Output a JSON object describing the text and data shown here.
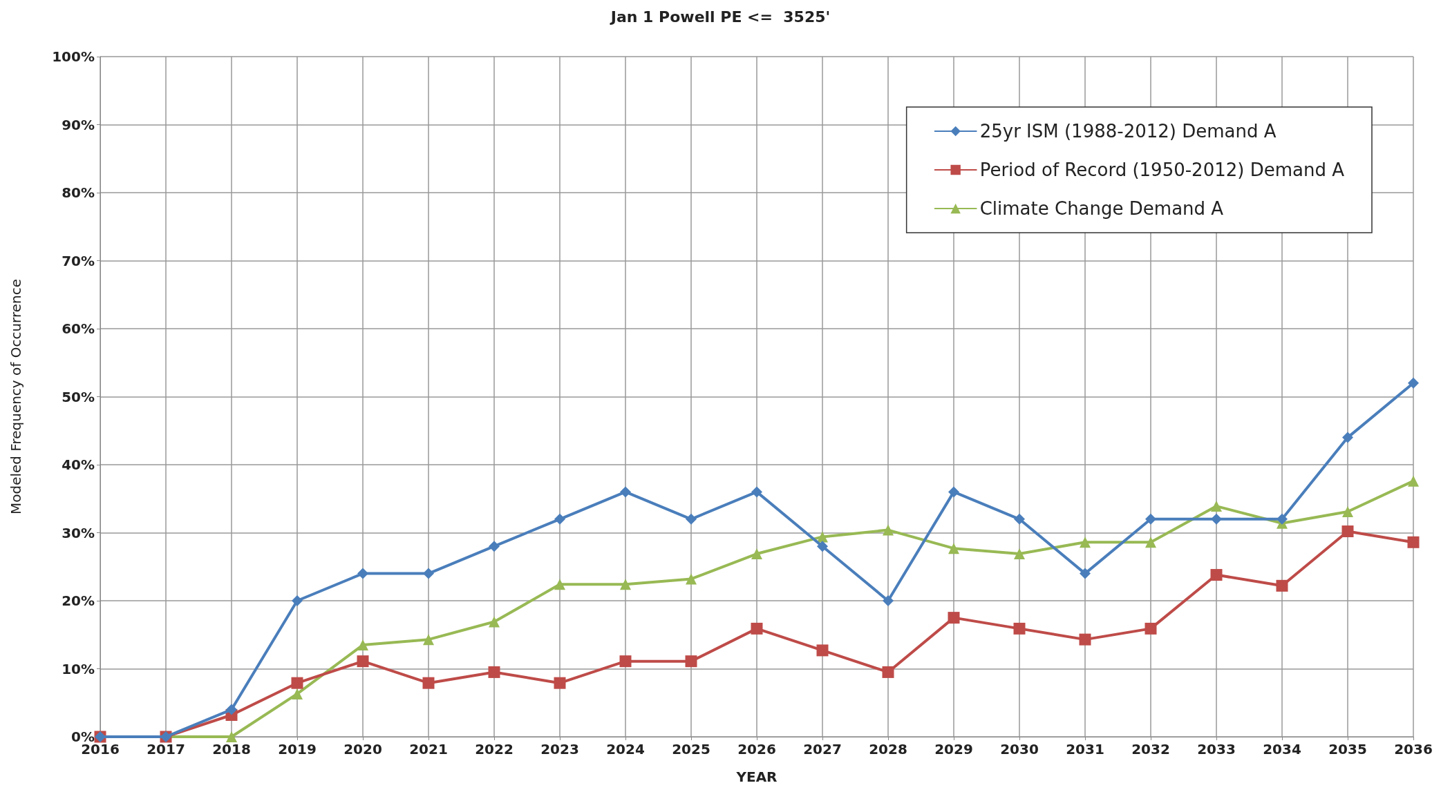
{
  "chart_data": {
    "type": "line",
    "title": "Jan 1 Powell PE <=  3525'",
    "xlabel": "YEAR",
    "ylabel": "Modeled Frequency of Occurrence",
    "categories": [
      "2016",
      "2017",
      "2018",
      "2019",
      "2020",
      "2021",
      "2022",
      "2023",
      "2024",
      "2025",
      "2026",
      "2027",
      "2028",
      "2029",
      "2030",
      "2031",
      "2032",
      "2033",
      "2034",
      "2035",
      "2036"
    ],
    "series": [
      {
        "name": "25yr ISM (1988-2012) Demand A",
        "color": "#4a7ebb",
        "marker": "diamond",
        "values": [
          0,
          0,
          4,
          20,
          24,
          24,
          28,
          32,
          36,
          32,
          36,
          28,
          20,
          36,
          32,
          24,
          32,
          32,
          32,
          44,
          52
        ]
      },
      {
        "name": "Period of Record (1950-2012) Demand A",
        "color": "#be4b48",
        "marker": "square",
        "values": [
          0,
          0,
          3.2,
          7.9,
          11.1,
          7.9,
          9.5,
          7.9,
          11.1,
          11.1,
          15.9,
          12.7,
          9.5,
          17.5,
          15.9,
          14.3,
          15.9,
          23.8,
          22.2,
          30.2,
          28.6
        ]
      },
      {
        "name": "Climate Change Demand A",
        "color": "#98b954",
        "marker": "triangle",
        "values": [
          0,
          0,
          0,
          6.3,
          13.5,
          14.3,
          16.9,
          22.4,
          22.4,
          23.2,
          26.9,
          29.4,
          30.4,
          27.7,
          26.9,
          28.6,
          28.6,
          33.9,
          31.4,
          33.1,
          37.6
        ]
      }
    ],
    "ylim": [
      0,
      100
    ],
    "yticks": [
      {
        "value": 0,
        "label": "0%"
      },
      {
        "value": 10,
        "label": "10%"
      },
      {
        "value": 20,
        "label": "20%"
      },
      {
        "value": 30,
        "label": "30%"
      },
      {
        "value": 40,
        "label": "40%"
      },
      {
        "value": 50,
        "label": "50%"
      },
      {
        "value": 60,
        "label": "60%"
      },
      {
        "value": 70,
        "label": "70%"
      },
      {
        "value": 80,
        "label": "80%"
      },
      {
        "value": 90,
        "label": "90%"
      },
      {
        "value": 100,
        "label": "100%"
      }
    ],
    "grid": true,
    "legend": "top right",
    "line_style": "solid"
  }
}
